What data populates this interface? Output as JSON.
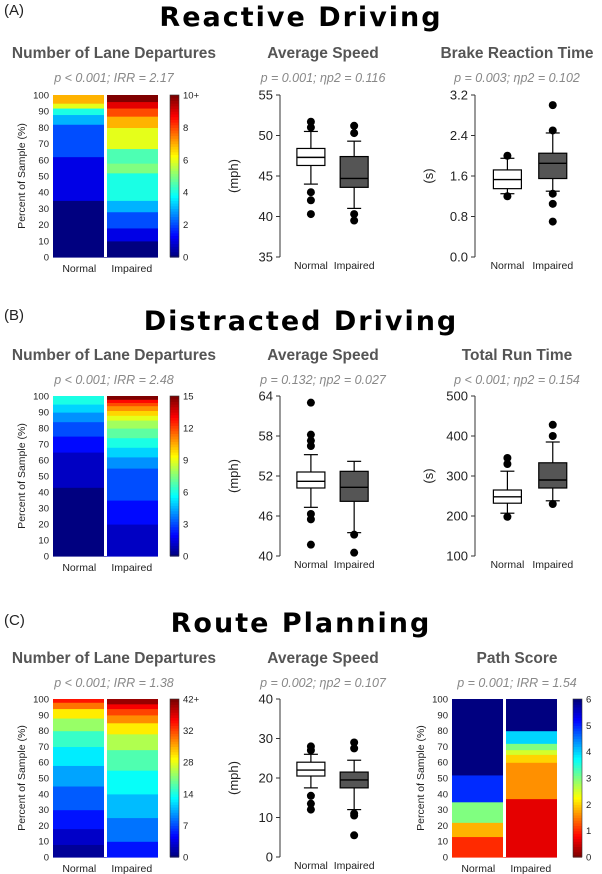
{
  "figure": {
    "panels": [
      {
        "label": "(A)",
        "title": "Reactive Driving",
        "plots": [
          {
            "kind": "heatmap",
            "title": "Number of Lane Departures",
            "stat": "p < 0.001; IRR = 2.17",
            "ylabel": "Percent of Sample (%)",
            "colormap": "jet",
            "cbar_ticks": [
              "0",
              "2",
              "4",
              "6",
              "8",
              "10+"
            ],
            "cbar_max": 10
          },
          {
            "kind": "box",
            "title": "Average Speed",
            "stat": "p = 0.001; ηp2 = 0.116",
            "ylabel": "(mph)",
            "ylim": [
              35,
              55
            ],
            "yticks": [
              "35",
              "40",
              "45",
              "50",
              "55"
            ]
          },
          {
            "kind": "box",
            "title": "Brake Reaction Time",
            "stat": "p = 0.003; ηp2 = 0.102",
            "ylabel": "(s)",
            "ylim": [
              0,
              3.2
            ],
            "yticks": [
              "0.0",
              "0.8",
              "1.6",
              "2.4",
              "3.2"
            ]
          }
        ]
      },
      {
        "label": "(B)",
        "title": "Distracted Driving",
        "plots": [
          {
            "kind": "heatmap",
            "title": "Number of Lane Departures",
            "stat": "p < 0.001; IRR = 2.48",
            "ylabel": "Percent of Sample (%)",
            "colormap": "jet",
            "cbar_ticks": [
              "0",
              "3",
              "6",
              "9",
              "12",
              "15"
            ],
            "cbar_max": 15
          },
          {
            "kind": "box",
            "title": "Average Speed",
            "stat": "p = 0.132; ηp2 = 0.027",
            "ylabel": "(mph)",
            "ylim": [
              40,
              64
            ],
            "yticks": [
              "40",
              "46",
              "52",
              "58",
              "64"
            ]
          },
          {
            "kind": "box",
            "title": "Total Run Time",
            "stat": "p < 0.001; ηp2 = 0.154",
            "ylabel": "(s)",
            "ylim": [
              100,
              500
            ],
            "yticks": [
              "100",
              "200",
              "300",
              "400",
              "500"
            ]
          }
        ]
      },
      {
        "label": "(C)",
        "title": "Route Planning",
        "plots": [
          {
            "kind": "heatmap",
            "title": "Number of Lane Departures",
            "stat": "p < 0.001; IRR = 1.38",
            "ylabel": "Percent of Sample (%)",
            "colormap": "jet",
            "cbar_ticks": [
              "0",
              "7",
              "14",
              "28",
              "32",
              "42+"
            ],
            "cbar_max": 42
          },
          {
            "kind": "box",
            "title": "Average Speed",
            "stat": "p = 0.002; ηp2 = 0.107",
            "ylabel": "(mph)",
            "ylim": [
              0,
              40
            ],
            "yticks": [
              "0",
              "10",
              "20",
              "30",
              "40"
            ]
          },
          {
            "kind": "heatmap",
            "title": "Path Score",
            "stat": "p = 0.001; IRR = 1.54",
            "ylabel": "Percent of Sample (%)",
            "colormap": "jet_r",
            "cbar_ticks": [
              "0",
              "1",
              "2",
              "3",
              "4",
              "5",
              "6"
            ],
            "cbar_max": 6
          }
        ]
      }
    ],
    "group_labels": [
      "Normal",
      "Impaired"
    ],
    "percent_ticks": [
      "0",
      "10",
      "20",
      "30",
      "40",
      "50",
      "60",
      "70",
      "80",
      "90",
      "100"
    ]
  },
  "chart_data": [
    {
      "type": "heatmap",
      "title": "Reactive Driving – Number of Lane Departures",
      "ylabel": "Percent of Sample (%)",
      "ylim": [
        0,
        100
      ],
      "series": [
        {
          "name": "Normal",
          "segments": [
            {
              "start": 0,
              "end": 35,
              "value": 0
            },
            {
              "start": 35,
              "end": 62,
              "value": 1
            },
            {
              "start": 62,
              "end": 82,
              "value": 2
            },
            {
              "start": 82,
              "end": 88,
              "value": 3
            },
            {
              "start": 88,
              "end": 92,
              "value": 4
            },
            {
              "start": 92,
              "end": 95,
              "value": 6
            },
            {
              "start": 95,
              "end": 100,
              "value": 7
            }
          ]
        },
        {
          "name": "Impaired",
          "segments": [
            {
              "start": 0,
              "end": 10,
              "value": 0
            },
            {
              "start": 10,
              "end": 18,
              "value": 1
            },
            {
              "start": 18,
              "end": 28,
              "value": 2
            },
            {
              "start": 28,
              "end": 35,
              "value": 3
            },
            {
              "start": 35,
              "end": 52,
              "value": 4
            },
            {
              "start": 52,
              "end": 58,
              "value": 5
            },
            {
              "start": 58,
              "end": 67,
              "value": 4.5
            },
            {
              "start": 67,
              "end": 80,
              "value": 6
            },
            {
              "start": 80,
              "end": 87,
              "value": 7
            },
            {
              "start": 87,
              "end": 92,
              "value": 8
            },
            {
              "start": 92,
              "end": 96,
              "value": 9
            },
            {
              "start": 96,
              "end": 100,
              "value": 10
            }
          ]
        }
      ]
    },
    {
      "type": "box",
      "title": "Reactive Driving – Average Speed",
      "ylabel": "(mph)",
      "ylim": [
        35,
        55
      ],
      "series": [
        {
          "name": "Normal",
          "min": 44,
          "q1": 46.3,
          "median": 47.3,
          "q3": 48.4,
          "max": 50.5,
          "outliers": [
            40.3,
            42,
            43,
            51,
            51.7
          ]
        },
        {
          "name": "Impaired",
          "min": 41,
          "q1": 43.6,
          "median": 44.7,
          "q3": 47.4,
          "max": 49.3,
          "outliers": [
            39.5,
            40.3,
            50.3,
            51.2
          ]
        }
      ]
    },
    {
      "type": "box",
      "title": "Reactive Driving – Brake Reaction Time",
      "ylabel": "(s)",
      "ylim": [
        0,
        3.2
      ],
      "series": [
        {
          "name": "Normal",
          "min": 1.25,
          "q1": 1.35,
          "median": 1.53,
          "q3": 1.72,
          "max": 1.95,
          "outliers": [
            1.2,
            2.0
          ]
        },
        {
          "name": "Impaired",
          "min": 1.3,
          "q1": 1.55,
          "median": 1.85,
          "q3": 2.05,
          "max": 2.45,
          "outliers": [
            0.7,
            1.05,
            1.25,
            2.5,
            3.0
          ]
        }
      ]
    },
    {
      "type": "heatmap",
      "title": "Distracted Driving – Number of Lane Departures",
      "ylabel": "Percent of Sample (%)",
      "ylim": [
        0,
        100
      ],
      "series": [
        {
          "name": "Normal",
          "segments": [
            {
              "start": 0,
              "end": 43,
              "value": 0
            },
            {
              "start": 43,
              "end": 65,
              "value": 1
            },
            {
              "start": 65,
              "end": 75,
              "value": 2
            },
            {
              "start": 75,
              "end": 84,
              "value": 3
            },
            {
              "start": 84,
              "end": 90,
              "value": 4
            },
            {
              "start": 90,
              "end": 95,
              "value": 5
            },
            {
              "start": 95,
              "end": 100,
              "value": 6
            }
          ]
        },
        {
          "name": "Impaired",
          "segments": [
            {
              "start": 0,
              "end": 20,
              "value": 1
            },
            {
              "start": 20,
              "end": 35,
              "value": 2
            },
            {
              "start": 35,
              "end": 55,
              "value": 3
            },
            {
              "start": 55,
              "end": 62,
              "value": 4
            },
            {
              "start": 62,
              "end": 68,
              "value": 5
            },
            {
              "start": 68,
              "end": 74,
              "value": 6
            },
            {
              "start": 74,
              "end": 80,
              "value": 7
            },
            {
              "start": 80,
              "end": 85,
              "value": 8
            },
            {
              "start": 85,
              "end": 88,
              "value": 9
            },
            {
              "start": 88,
              "end": 91,
              "value": 10
            },
            {
              "start": 91,
              "end": 94,
              "value": 11
            },
            {
              "start": 94,
              "end": 96,
              "value": 12
            },
            {
              "start": 96,
              "end": 98,
              "value": 13
            },
            {
              "start": 98,
              "end": 100,
              "value": 15
            }
          ]
        }
      ]
    },
    {
      "type": "box",
      "title": "Distracted Driving – Average Speed",
      "ylabel": "(mph)",
      "ylim": [
        40,
        64
      ],
      "series": [
        {
          "name": "Normal",
          "min": 47.3,
          "q1": 50.2,
          "median": 51.2,
          "q3": 52.6,
          "max": 55.2,
          "outliers": [
            41.7,
            45.5,
            46.3,
            56.5,
            57.3,
            58.2,
            63
          ]
        },
        {
          "name": "Impaired",
          "min": 43.5,
          "q1": 48.2,
          "median": 50.3,
          "q3": 52.7,
          "max": 54.2,
          "outliers": [
            40.5,
            43.2
          ]
        }
      ]
    },
    {
      "type": "box",
      "title": "Distracted Driving – Total Run Time",
      "ylabel": "(s)",
      "ylim": [
        100,
        500
      ],
      "series": [
        {
          "name": "Normal",
          "min": 207,
          "q1": 232,
          "median": 248,
          "q3": 265,
          "max": 312,
          "outliers": [
            198,
            330,
            345
          ]
        },
        {
          "name": "Impaired",
          "min": 238,
          "q1": 270,
          "median": 290,
          "q3": 333,
          "max": 385,
          "outliers": [
            230,
            400,
            428
          ]
        }
      ]
    },
    {
      "type": "heatmap",
      "title": "Route Planning – Number of Lane Departures",
      "ylabel": "Percent of Sample (%)",
      "ylim": [
        0,
        100
      ],
      "series": [
        {
          "name": "Normal",
          "segments": [
            {
              "start": 0,
              "end": 8,
              "value": 1
            },
            {
              "start": 8,
              "end": 18,
              "value": 3
            },
            {
              "start": 18,
              "end": 30,
              "value": 6
            },
            {
              "start": 30,
              "end": 45,
              "value": 9
            },
            {
              "start": 45,
              "end": 58,
              "value": 12
            },
            {
              "start": 58,
              "end": 70,
              "value": 15
            },
            {
              "start": 70,
              "end": 80,
              "value": 18
            },
            {
              "start": 80,
              "end": 88,
              "value": 22
            },
            {
              "start": 88,
              "end": 94,
              "value": 27
            },
            {
              "start": 94,
              "end": 98,
              "value": 32
            },
            {
              "start": 98,
              "end": 100,
              "value": 36
            }
          ]
        },
        {
          "name": "Impaired",
          "segments": [
            {
              "start": 0,
              "end": 10,
              "value": 6
            },
            {
              "start": 10,
              "end": 25,
              "value": 10
            },
            {
              "start": 25,
              "end": 40,
              "value": 13
            },
            {
              "start": 40,
              "end": 55,
              "value": 16
            },
            {
              "start": 55,
              "end": 68,
              "value": 19
            },
            {
              "start": 68,
              "end": 78,
              "value": 23
            },
            {
              "start": 78,
              "end": 85,
              "value": 27
            },
            {
              "start": 85,
              "end": 90,
              "value": 31
            },
            {
              "start": 90,
              "end": 94,
              "value": 34
            },
            {
              "start": 94,
              "end": 97,
              "value": 37
            },
            {
              "start": 97,
              "end": 100,
              "value": 41
            }
          ]
        }
      ]
    },
    {
      "type": "box",
      "title": "Route Planning – Average Speed",
      "ylabel": "(mph)",
      "ylim": [
        0,
        40
      ],
      "series": [
        {
          "name": "Normal",
          "min": 17.5,
          "q1": 20.5,
          "median": 22,
          "q3": 24,
          "max": 26,
          "outliers": [
            12,
            13.5,
            15.5,
            27,
            28
          ]
        },
        {
          "name": "Impaired",
          "min": 12,
          "q1": 17.5,
          "median": 19.5,
          "q3": 21.5,
          "max": 24.5,
          "outliers": [
            5.5,
            10.5,
            11,
            27.5,
            29
          ]
        }
      ]
    },
    {
      "type": "heatmap",
      "title": "Route Planning – Path Score",
      "ylabel": "Percent of Sample (%)",
      "ylim": [
        0,
        100
      ],
      "series": [
        {
          "name": "Normal",
          "segments": [
            {
              "start": 0,
              "end": 13,
              "value": 1
            },
            {
              "start": 13,
              "end": 22,
              "value": 1.8
            },
            {
              "start": 22,
              "end": 35,
              "value": 3
            },
            {
              "start": 35,
              "end": 52,
              "value": 5
            },
            {
              "start": 52,
              "end": 100,
              "value": 6
            }
          ]
        },
        {
          "name": "Impaired",
          "segments": [
            {
              "start": 0,
              "end": 37,
              "value": 0.6
            },
            {
              "start": 37,
              "end": 60,
              "value": 1.6
            },
            {
              "start": 60,
              "end": 65,
              "value": 2
            },
            {
              "start": 65,
              "end": 68,
              "value": 2.5
            },
            {
              "start": 68,
              "end": 72,
              "value": 3
            },
            {
              "start": 72,
              "end": 80,
              "value": 4
            },
            {
              "start": 80,
              "end": 100,
              "value": 6
            }
          ]
        }
      ]
    }
  ]
}
